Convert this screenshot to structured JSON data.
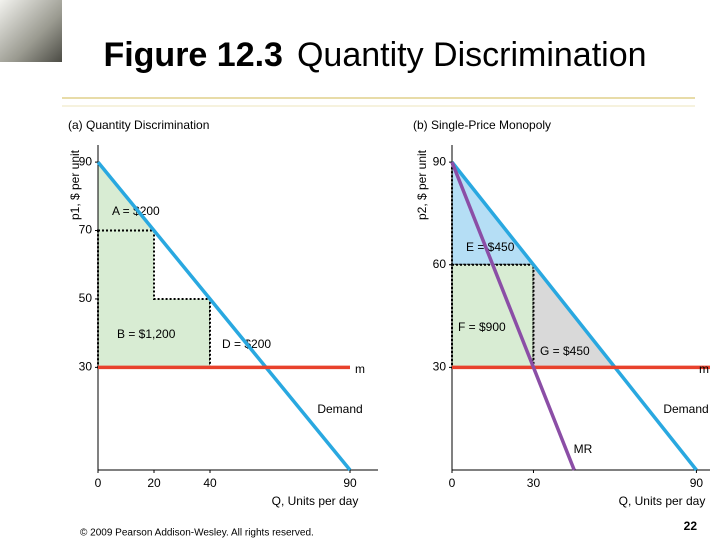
{
  "slide": {
    "number": "Figure 12.3",
    "title": "Quantity Discrimination",
    "copyright": "© 2009 Pearson Addison-Wesley. All rights reserved.",
    "page": "22"
  },
  "chart_data": [
    {
      "type": "line",
      "title": "(a) Quantity Discrimination",
      "ylabel": "p1, $ per unit",
      "xlabel": "Q, Units per day",
      "xlim": [
        0,
        100
      ],
      "ylim": [
        0,
        95
      ],
      "xticks": [
        0,
        20,
        40,
        90
      ],
      "yticks": [
        30,
        50,
        70,
        90
      ],
      "series": [
        {
          "name": "Demand",
          "color": "#29a8e0",
          "x": [
            0,
            90
          ],
          "values": [
            90,
            0
          ]
        },
        {
          "name": "m",
          "color": "#e8412c",
          "x": [
            0,
            90
          ],
          "values": [
            30,
            30
          ]
        }
      ],
      "regions": [
        {
          "label": "A = $200",
          "color": "#d8ecd3",
          "dotted": false,
          "x": [
            0,
            20,
            0
          ],
          "values": [
            90,
            70,
            70
          ]
        },
        {
          "label": "B = $1,200",
          "color": "#d8ecd3",
          "dotted": true,
          "x": [
            0,
            20,
            20,
            40,
            40,
            0
          ],
          "values": [
            70,
            70,
            50,
            50,
            30,
            30
          ]
        },
        {
          "label": "D = $200",
          "color": "#ffffff",
          "dotted": true,
          "x": [
            40,
            60,
            40
          ],
          "values": [
            50,
            30,
            30
          ]
        }
      ]
    },
    {
      "type": "line",
      "title": "(b) Single-Price Monopoly",
      "ylabel": "p2, $ per unit",
      "xlabel": "Q, Units per day",
      "xlim": [
        0,
        95
      ],
      "ylim": [
        0,
        95
      ],
      "xticks": [
        0,
        30,
        90
      ],
      "yticks": [
        30,
        60,
        90
      ],
      "series": [
        {
          "name": "Demand",
          "color": "#29a8e0",
          "x": [
            0,
            90
          ],
          "values": [
            90,
            0
          ]
        },
        {
          "name": "m",
          "color": "#e8412c",
          "x": [
            0,
            95
          ],
          "values": [
            30,
            30
          ]
        },
        {
          "name": "MR",
          "color": "#8b4ea6",
          "x": [
            0,
            45
          ],
          "values": [
            90,
            0
          ]
        }
      ],
      "regions": [
        {
          "label": "E = $450",
          "color": "#b5def5",
          "dotted": true,
          "x": [
            0,
            30,
            0
          ],
          "values": [
            90,
            60,
            60
          ]
        },
        {
          "label": "F = $900",
          "color": "#d8ecd3",
          "dotted": true,
          "x": [
            0,
            30,
            30,
            0
          ],
          "values": [
            60,
            60,
            30,
            30
          ]
        },
        {
          "label": "G = $450",
          "color": "#d9d9d9",
          "dotted": true,
          "x": [
            30,
            60,
            30
          ],
          "values": [
            60,
            30,
            30
          ]
        }
      ]
    }
  ]
}
